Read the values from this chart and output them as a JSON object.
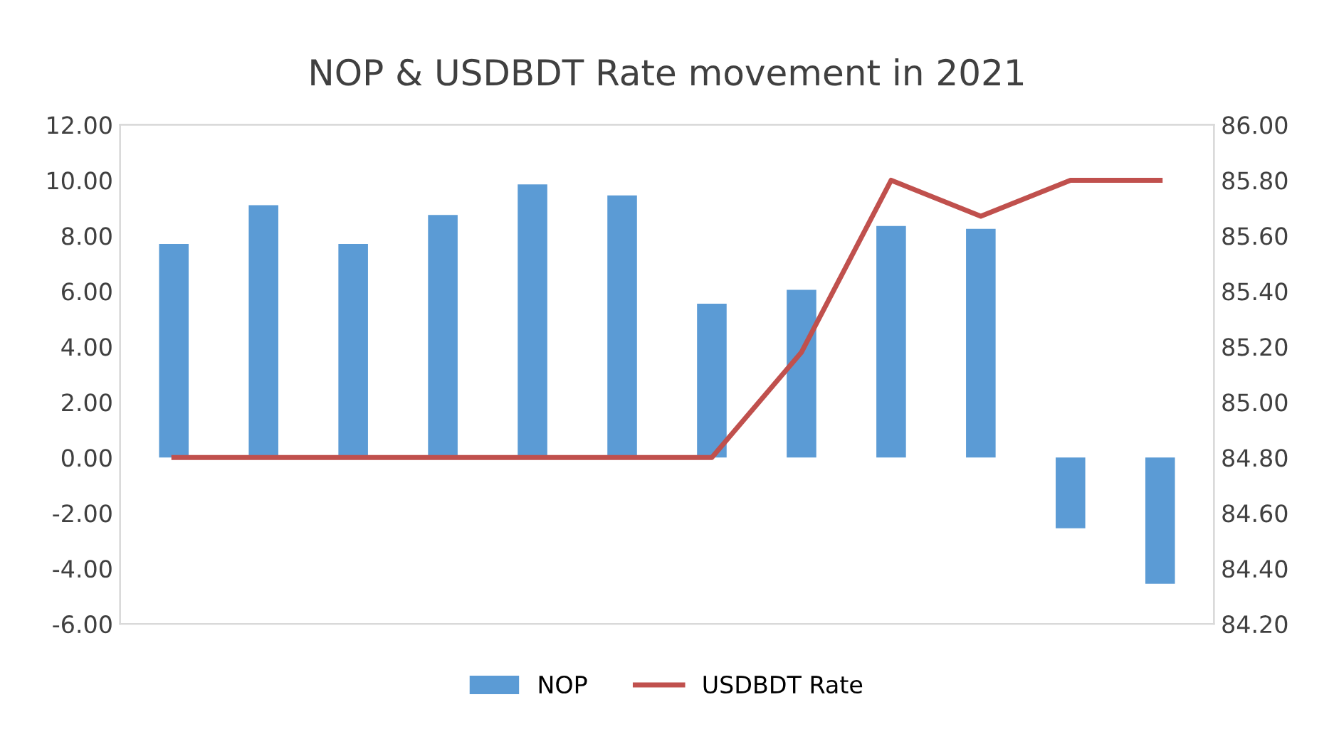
{
  "chart_data": {
    "type": "bar",
    "title": "NOP & USDBDT Rate movement in 2021",
    "categories": [
      null,
      null,
      null,
      null,
      null,
      null,
      null,
      null,
      null,
      null,
      null,
      null
    ],
    "series": [
      {
        "name": "NOP",
        "color": "#5b9bd5",
        "values": [
          7.7,
          9.1,
          7.7,
          8.75,
          9.85,
          9.45,
          5.55,
          6.05,
          8.35,
          8.25,
          -2.55,
          -4.55
        ]
      },
      {
        "name": "USDBDT Rate",
        "type": "line",
        "axis": "y2",
        "color": "#c0504d",
        "values": [
          84.8,
          84.8,
          84.8,
          84.8,
          84.8,
          84.8,
          84.8,
          85.18,
          85.8,
          85.67,
          85.8,
          85.8
        ]
      }
    ],
    "ylim": [
      -6,
      12
    ],
    "yticks": [
      {
        "value": -6,
        "label": "-6.00"
      },
      {
        "value": -4,
        "label": "-4.00"
      },
      {
        "value": -2,
        "label": "-2.00"
      },
      {
        "value": 0,
        "label": "0.00"
      },
      {
        "value": 2,
        "label": "2.00"
      },
      {
        "value": 4,
        "label": "4.00"
      },
      {
        "value": 6,
        "label": "6.00"
      },
      {
        "value": 8,
        "label": "8.00"
      },
      {
        "value": 10,
        "label": "10.00"
      },
      {
        "value": 12,
        "label": "12.00"
      }
    ],
    "y2lim": [
      84.2,
      86
    ],
    "y2ticks": [
      {
        "value": 84.2,
        "label": "84.20"
      },
      {
        "value": 84.4,
        "label": "84.40"
      },
      {
        "value": 84.6,
        "label": "84.60"
      },
      {
        "value": 84.8,
        "label": "84.80"
      },
      {
        "value": 85.0,
        "label": "85.00"
      },
      {
        "value": 85.2,
        "label": "85.20"
      },
      {
        "value": 85.4,
        "label": "85.40"
      },
      {
        "value": 85.6,
        "label": "85.60"
      },
      {
        "value": 85.8,
        "label": "85.80"
      },
      {
        "value": 86.0,
        "label": "86.00"
      }
    ],
    "legend": "bottom",
    "grid": false,
    "marker": "none",
    "line_style": "solid"
  }
}
